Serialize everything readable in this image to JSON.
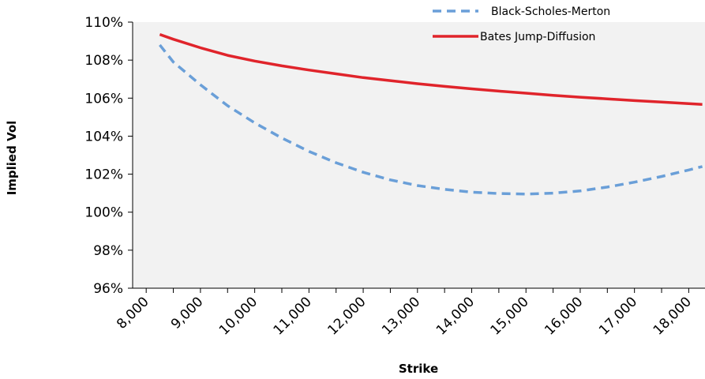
{
  "chart_data": {
    "type": "line",
    "xlabel": "Strike",
    "ylabel": "Implied Vol",
    "x_tick_labels": [
      "8,000",
      "9,000",
      "10,000",
      "11,000",
      "12,000",
      "13,000",
      "14,000",
      "15,000",
      "16,000",
      "17,000",
      "18,000"
    ],
    "y_tick_labels": [
      "96%",
      "98%",
      "100%",
      "102%",
      "104%",
      "106%",
      "108%",
      "110%"
    ],
    "xlim": [
      7750,
      18300
    ],
    "ylim": [
      96,
      110
    ],
    "grid": false,
    "legend_position": "top-right",
    "series": [
      {
        "name": "Black-Scholes-Merton",
        "color": "#6a9fd8",
        "dash": "dashed",
        "x": [
          8250,
          8500,
          9000,
          9500,
          10000,
          10500,
          11000,
          11500,
          12000,
          12500,
          13000,
          13500,
          14000,
          14500,
          15000,
          15500,
          16000,
          16500,
          17000,
          17500,
          18000,
          18250
        ],
        "y": [
          108.8,
          107.9,
          106.7,
          105.6,
          104.7,
          103.9,
          103.2,
          102.6,
          102.1,
          101.7,
          101.4,
          101.2,
          101.05,
          100.98,
          100.95,
          101.0,
          101.12,
          101.32,
          101.58,
          101.88,
          102.22,
          102.4
        ]
      },
      {
        "name": "Bates Jump-Diffusion",
        "color": "#e0242b",
        "dash": "solid",
        "x": [
          8250,
          8500,
          9000,
          9500,
          10000,
          10500,
          11000,
          11500,
          12000,
          12500,
          13000,
          13500,
          14000,
          14500,
          15000,
          15500,
          16000,
          16500,
          17000,
          17500,
          18000,
          18250
        ],
        "y": [
          109.35,
          109.1,
          108.65,
          108.25,
          107.95,
          107.7,
          107.48,
          107.28,
          107.08,
          106.92,
          106.76,
          106.62,
          106.49,
          106.37,
          106.26,
          106.15,
          106.05,
          105.96,
          105.87,
          105.79,
          105.71,
          105.67
        ]
      }
    ]
  }
}
